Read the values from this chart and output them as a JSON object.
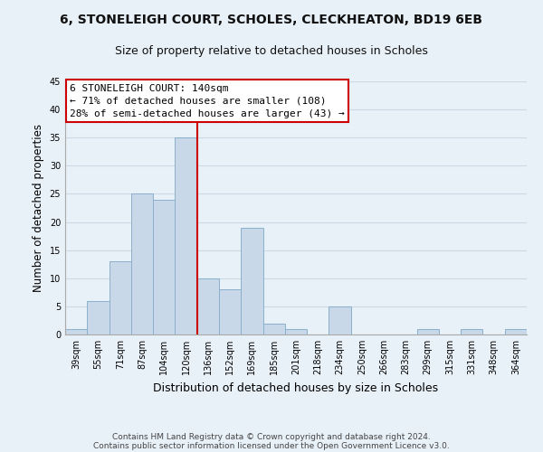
{
  "title_line1": "6, STONELEIGH COURT, SCHOLES, CLECKHEATON, BD19 6EB",
  "title_line2": "Size of property relative to detached houses in Scholes",
  "xlabel": "Distribution of detached houses by size in Scholes",
  "ylabel": "Number of detached properties",
  "bar_labels": [
    "39sqm",
    "55sqm",
    "71sqm",
    "87sqm",
    "104sqm",
    "120sqm",
    "136sqm",
    "152sqm",
    "169sqm",
    "185sqm",
    "201sqm",
    "218sqm",
    "234sqm",
    "250sqm",
    "266sqm",
    "283sqm",
    "299sqm",
    "315sqm",
    "331sqm",
    "348sqm",
    "364sqm"
  ],
  "bar_heights": [
    1,
    6,
    13,
    25,
    24,
    35,
    10,
    8,
    19,
    2,
    1,
    0,
    5,
    0,
    0,
    0,
    1,
    0,
    1,
    0,
    1
  ],
  "bar_color": "#c8d8e8",
  "bar_edge_color": "#8ab0cc",
  "vline_color": "#cc0000",
  "vline_x_index": 5.5,
  "ylim": [
    0,
    45
  ],
  "yticks": [
    0,
    5,
    10,
    15,
    20,
    25,
    30,
    35,
    40,
    45
  ],
  "annotation_title": "6 STONELEIGH COURT: 140sqm",
  "annotation_line2": "← 71% of detached houses are smaller (108)",
  "annotation_line3": "28% of semi-detached houses are larger (43) →",
  "annotation_box_color": "#ffffff",
  "annotation_box_edge": "#cc0000",
  "footer_line1": "Contains HM Land Registry data © Crown copyright and database right 2024.",
  "footer_line2": "Contains public sector information licensed under the Open Government Licence v3.0.",
  "grid_color": "#ccd8e4",
  "background_color": "#e8f0f8",
  "title_fontsize": 10,
  "subtitle_fontsize": 9,
  "ylabel_fontsize": 8.5,
  "xlabel_fontsize": 9,
  "tick_fontsize": 7,
  "annotation_fontsize": 8,
  "footer_fontsize": 6.5
}
